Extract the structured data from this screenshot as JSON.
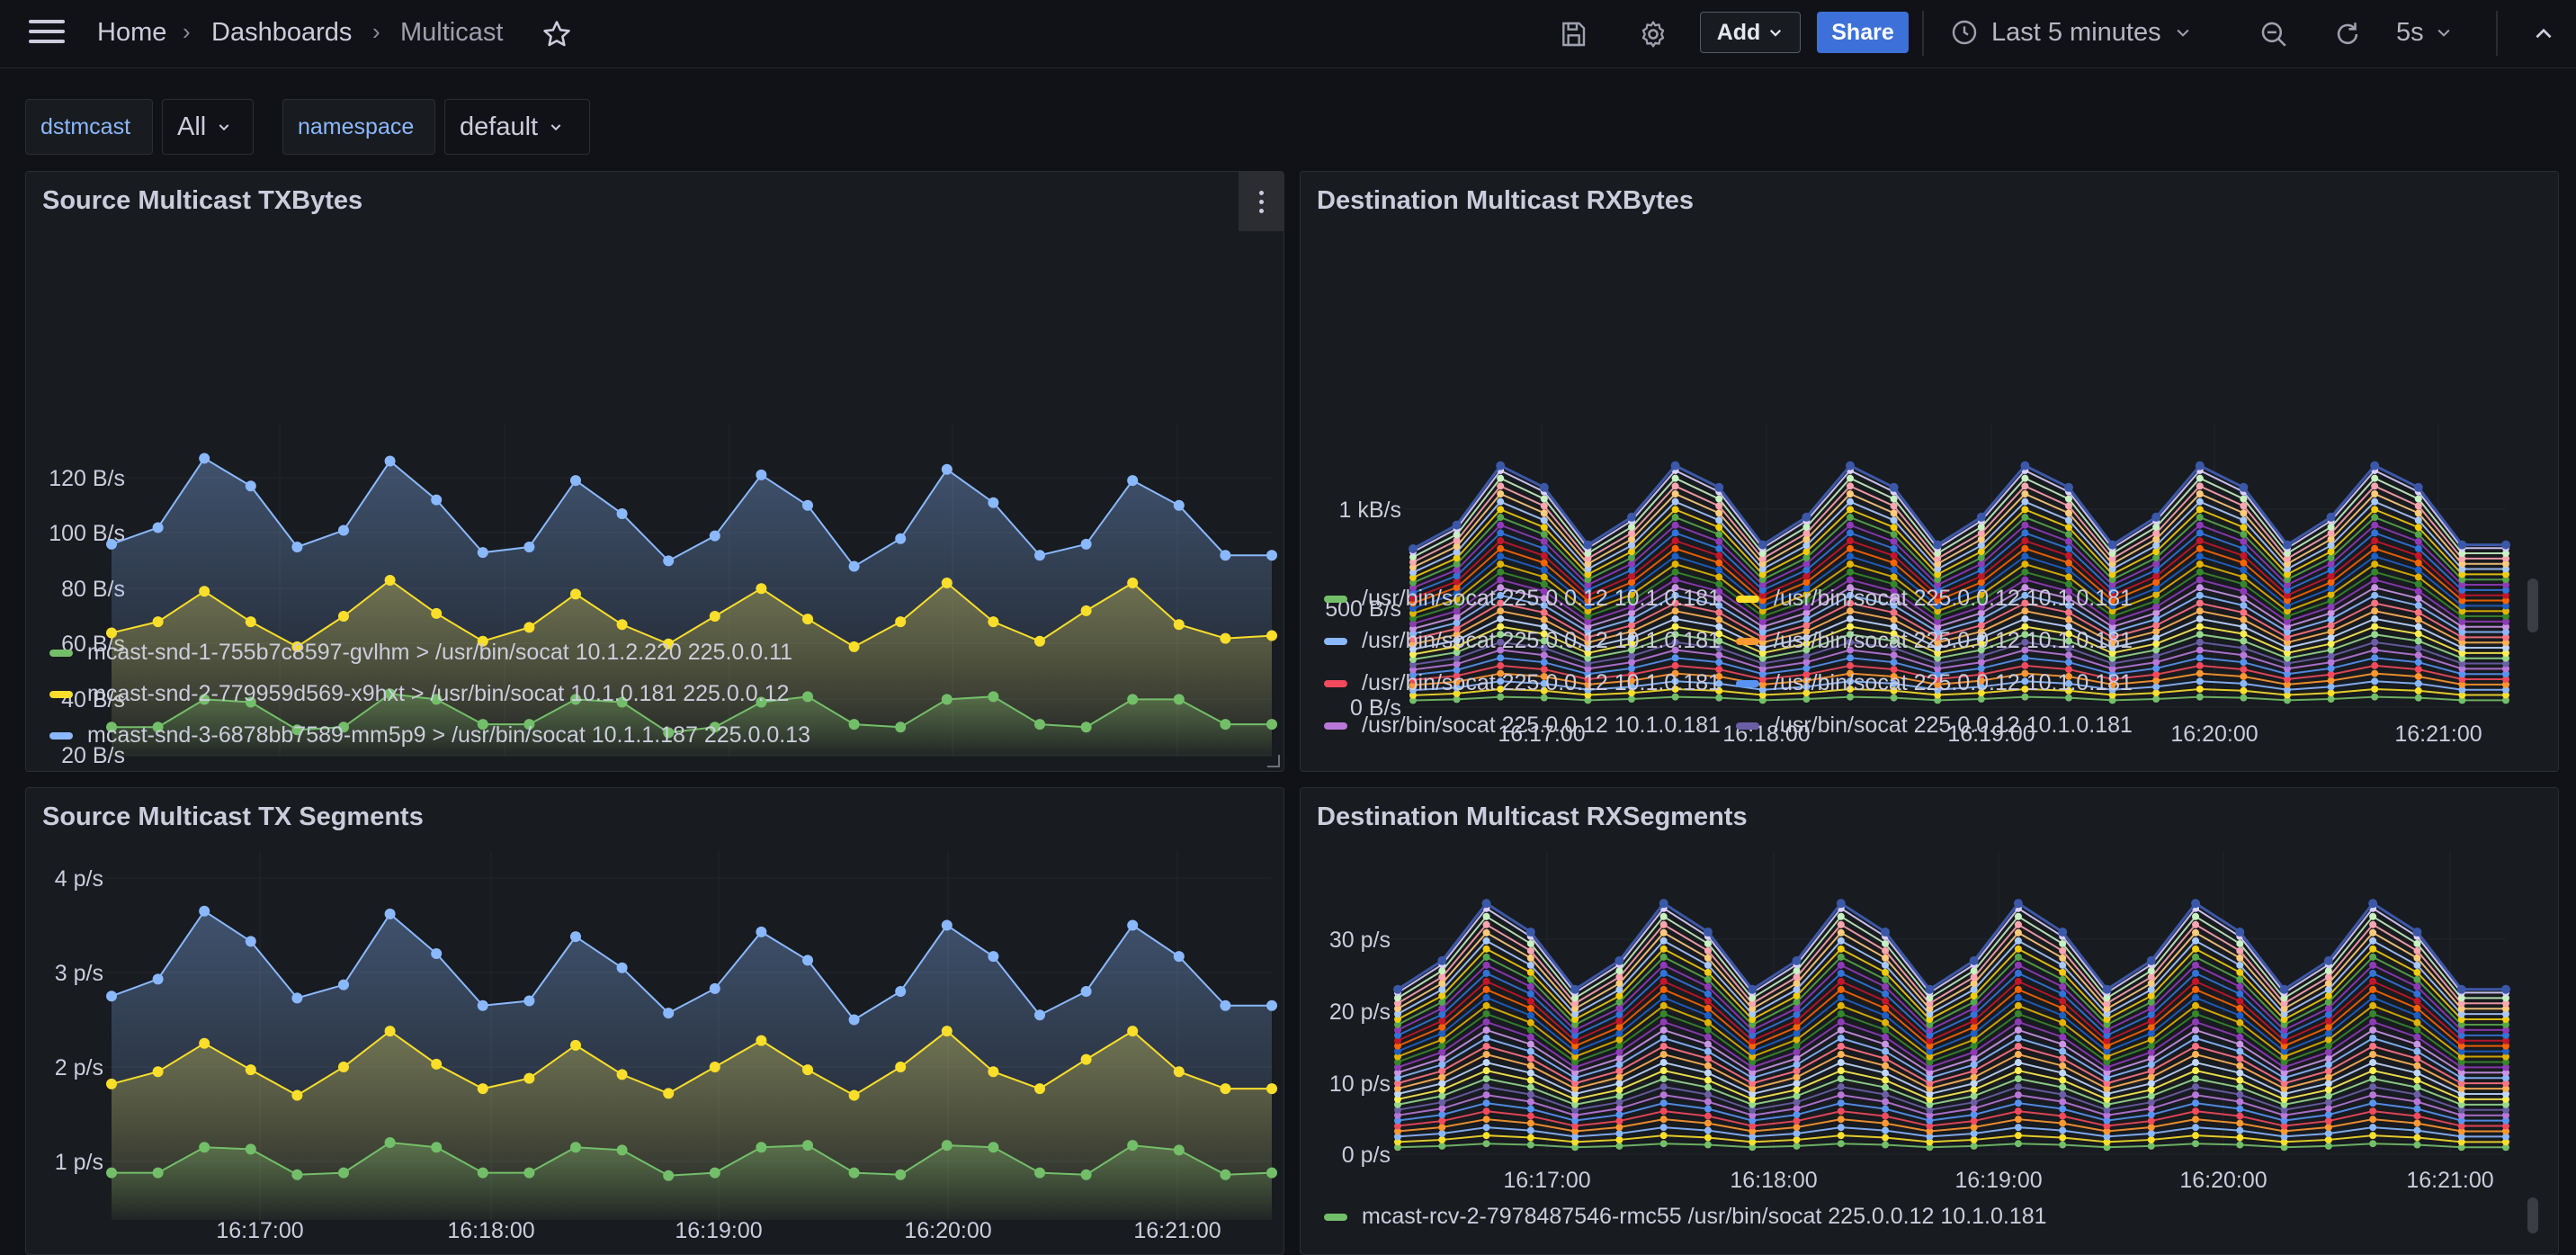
{
  "nav": {
    "breadcrumb_home": "Home",
    "breadcrumb_dashboards": "Dashboards",
    "breadcrumb_current": "Multicast",
    "add_label": "Add",
    "share_label": "Share",
    "time_range": "Last 5 minutes",
    "refresh_interval": "5s"
  },
  "variables": [
    {
      "label": "dstmcast",
      "value": "All"
    },
    {
      "label": "namespace",
      "value": "default"
    }
  ],
  "colors": {
    "green": "#73bf69",
    "yellow": "#fade2a",
    "blue": "#8ab8ff",
    "red": "#f2495c",
    "orange": "#ff9830",
    "purple": "#b877d9",
    "darkpurple": "#6b5ea6",
    "skyblue": "#5794f2"
  },
  "panels": {
    "tx_bytes": {
      "title": "Source Multicast TXBytes",
      "legend": [
        {
          "label": "mcast-snd-1-755b7c8597-gvlhm > /usr/bin/socat 10.1.2.220 225.0.0.11",
          "color": "#73bf69"
        },
        {
          "label": "mcast-snd-2-779959d569-x9hxt > /usr/bin/socat 10.1.0.181 225.0.0.12",
          "color": "#fade2a"
        },
        {
          "label": "mcast-snd-3-6878bb7589-mm5p9 > /usr/bin/socat 10.1.1.187 225.0.0.13",
          "color": "#8ab8ff"
        }
      ]
    },
    "rx_bytes": {
      "title": "Destination Multicast RXBytes",
      "legend": [
        {
          "label": "/usr/bin/socat 225.0.0.12 10.1.0.181",
          "color": "#73bf69"
        },
        {
          "label": "/usr/bin/socat 225.0.0.12 10.1.0.181",
          "color": "#fade2a"
        },
        {
          "label": "/usr/bin/socat 225.0.0.12 10.1.0.181",
          "color": "#8ab8ff"
        },
        {
          "label": "/usr/bin/socat 225.0.0.12 10.1.0.181",
          "color": "#ff9830"
        },
        {
          "label": "/usr/bin/socat 225.0.0.12 10.1.0.181",
          "color": "#f2495c"
        },
        {
          "label": "/usr/bin/socat 225.0.0.12 10.1.0.181",
          "color": "#5794f2"
        },
        {
          "label": "/usr/bin/socat 225.0.0.12 10.1.0.181",
          "color": "#b877d9"
        },
        {
          "label": "/usr/bin/socat 225.0.0.12 10.1.0.181",
          "color": "#6b5ea6"
        }
      ]
    },
    "tx_segments": {
      "title": "Source Multicast TX Segments"
    },
    "rx_segments": {
      "title": "Destination Multicast RXSegments",
      "legend": [
        {
          "label": "mcast-rcv-2-7978487546-rmc55 /usr/bin/socat 225.0.0.12 10.1.0.181",
          "color": "#73bf69"
        }
      ]
    }
  },
  "chart_data": [
    {
      "type": "area",
      "title": "Source Multicast TXBytes",
      "x": [
        "16:16:40",
        "16:16:45",
        "16:16:55",
        "16:17:05",
        "16:17:15",
        "16:17:25",
        "16:17:35",
        "16:17:45",
        "16:17:55",
        "16:18:05",
        "16:18:15",
        "16:18:25",
        "16:18:35",
        "16:18:45",
        "16:18:55",
        "16:19:05",
        "16:19:15",
        "16:19:25",
        "16:19:35",
        "16:19:45",
        "16:19:55",
        "16:20:05",
        "16:20:15",
        "16:20:25",
        "16:20:35",
        "16:20:45"
      ],
      "x_ticks": [
        "16:17:00",
        "16:18:00",
        "16:19:00",
        "16:20:00",
        "16:21:00"
      ],
      "y_ticks": [
        "20 B/s",
        "40 B/s",
        "60 B/s",
        "80 B/s",
        "100 B/s",
        "120 B/s"
      ],
      "ylim": [
        18,
        128
      ],
      "series": [
        {
          "name": "mcast-snd-1-755b7c8597-gvlhm > /usr/bin/socat 10.1.2.220 225.0.0.11",
          "color": "#73bf69",
          "values": [
            30,
            30,
            40,
            39,
            29,
            30,
            42,
            40,
            31,
            31,
            40,
            39,
            28,
            30,
            39,
            41,
            31,
            30,
            40,
            41,
            31,
            30,
            40,
            40,
            31,
            31
          ]
        },
        {
          "name": "mcast-snd-2-779959d569-x9hxt > /usr/bin/socat 10.1.0.181 225.0.0.12",
          "color": "#fade2a",
          "values": [
            64,
            68,
            79,
            68,
            59,
            70,
            83,
            71,
            61,
            66,
            78,
            67,
            60,
            70,
            80,
            69,
            59,
            68,
            82,
            68,
            61,
            72,
            82,
            67,
            62,
            63
          ]
        },
        {
          "name": "mcast-snd-3-6878bb7589-mm5p9 > /usr/bin/socat 10.1.1.187 225.0.0.13",
          "color": "#8ab8ff",
          "values": [
            96,
            102,
            127,
            117,
            95,
            101,
            126,
            112,
            93,
            95,
            119,
            107,
            90,
            99,
            121,
            110,
            88,
            98,
            123,
            111,
            92,
            96,
            119,
            110,
            92,
            92
          ]
        }
      ]
    },
    {
      "type": "line",
      "title": "Destination Multicast RXBytes",
      "x_ticks": [
        "16:17:00",
        "16:18:00",
        "16:19:00",
        "16:20:00",
        "16:21:00"
      ],
      "y_ticks": [
        "0 B/s",
        "500 B/s",
        "1 kB/s"
      ],
      "ylim": [
        0,
        1400
      ],
      "x": [
        "16:16:40",
        "16:16:50",
        "16:17:00",
        "16:17:10",
        "16:17:20",
        "16:17:30",
        "16:17:40",
        "16:17:50",
        "16:18:00",
        "16:18:10",
        "16:18:20",
        "16:18:30",
        "16:18:40",
        "16:18:50",
        "16:19:00",
        "16:19:10",
        "16:19:20",
        "16:19:30",
        "16:19:40",
        "16:19:50",
        "16:20:00",
        "16:20:10",
        "16:20:20",
        "16:20:30",
        "16:20:40",
        "16:20:50"
      ],
      "series_count": 30,
      "top_envelope": [
        800,
        920,
        1220,
        1110,
        820,
        960,
        1220,
        1110,
        820,
        960,
        1220,
        1110,
        820,
        960,
        1220,
        1110,
        820,
        960,
        1220,
        1110,
        820,
        960,
        1220,
        1110,
        820,
        820
      ]
    },
    {
      "type": "area",
      "title": "Source Multicast TX Segments",
      "x_ticks": [
        "16:17:00",
        "16:18:00",
        "16:19:00",
        "16:20:00",
        "16:21:00"
      ],
      "y_ticks": [
        "1 p/s",
        "2 p/s",
        "3 p/s",
        "4 p/s"
      ],
      "ylim": [
        0.6,
        4.2
      ],
      "x": [
        "16:16:40",
        "16:16:45",
        "16:16:55",
        "16:17:05",
        "16:17:15",
        "16:17:25",
        "16:17:35",
        "16:17:45",
        "16:17:55",
        "16:18:05",
        "16:18:15",
        "16:18:25",
        "16:18:35",
        "16:18:45",
        "16:18:55",
        "16:19:05",
        "16:19:15",
        "16:19:25",
        "16:19:35",
        "16:19:45",
        "16:19:55",
        "16:20:05",
        "16:20:15",
        "16:20:25",
        "16:20:35",
        "16:20:45"
      ],
      "series": [
        {
          "name": "green",
          "color": "#73bf69",
          "values": [
            0.88,
            0.88,
            1.15,
            1.13,
            0.86,
            0.88,
            1.2,
            1.15,
            0.88,
            0.88,
            1.15,
            1.12,
            0.85,
            0.88,
            1.15,
            1.17,
            0.88,
            0.86,
            1.17,
            1.15,
            0.88,
            0.86,
            1.17,
            1.12,
            0.86,
            0.88
          ]
        },
        {
          "name": "yellow",
          "color": "#fade2a",
          "values": [
            1.82,
            1.95,
            2.25,
            1.97,
            1.7,
            2.0,
            2.38,
            2.03,
            1.77,
            1.88,
            2.23,
            1.92,
            1.72,
            2.0,
            2.28,
            1.97,
            1.7,
            2.0,
            2.38,
            1.95,
            1.77,
            2.08,
            2.38,
            1.95,
            1.77,
            1.77
          ]
        },
        {
          "name": "blue",
          "color": "#8ab8ff",
          "values": [
            2.75,
            2.93,
            3.65,
            3.33,
            2.73,
            2.87,
            3.62,
            3.2,
            2.65,
            2.7,
            3.38,
            3.05,
            2.57,
            2.83,
            3.43,
            3.13,
            2.5,
            2.8,
            3.5,
            3.17,
            2.55,
            2.8,
            3.5,
            3.17,
            2.65,
            2.65
          ]
        }
      ]
    },
    {
      "type": "line",
      "title": "Destination Multicast RXSegments",
      "x_ticks": [
        "16:17:00",
        "16:18:00",
        "16:19:00",
        "16:20:00",
        "16:21:00"
      ],
      "y_ticks": [
        "0 p/s",
        "10 p/s",
        "20 p/s",
        "30 p/s"
      ],
      "ylim": [
        0,
        37
      ],
      "x": [
        "16:16:40",
        "16:16:50",
        "16:17:00",
        "16:17:10",
        "16:17:20",
        "16:17:30",
        "16:17:40",
        "16:17:50",
        "16:18:00",
        "16:18:10",
        "16:18:20",
        "16:18:30",
        "16:18:40",
        "16:18:50",
        "16:19:00",
        "16:19:10",
        "16:19:20",
        "16:19:30",
        "16:19:40",
        "16:19:50",
        "16:20:00",
        "16:20:10",
        "16:20:20",
        "16:20:30",
        "16:20:40",
        "16:20:50"
      ],
      "series_count": 30,
      "top_envelope": [
        23,
        27,
        35,
        31,
        23,
        27,
        35,
        31,
        23,
        27,
        35,
        31,
        23,
        27,
        35,
        31,
        23,
        27,
        35,
        31,
        23,
        27,
        35,
        31,
        23,
        23
      ]
    }
  ]
}
